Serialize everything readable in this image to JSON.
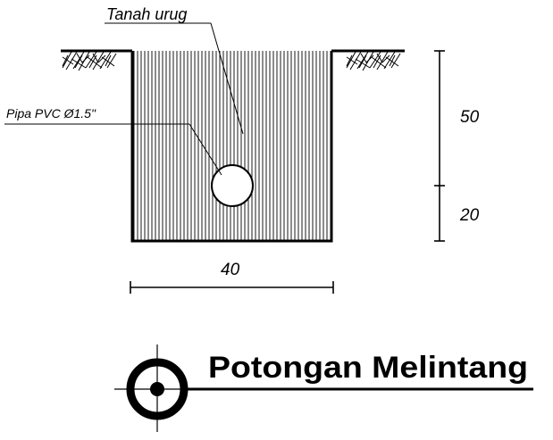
{
  "labels": {
    "backfill": "Tanah urug",
    "pipe": "Pipa PVC Ø1.5\""
  },
  "dimensions": {
    "upper_depth": "50",
    "lower_depth": "20",
    "width": "40"
  },
  "title": "Potongan Melintang",
  "colors": {
    "ink": "#000000",
    "paper": "#ffffff"
  },
  "icons": {
    "section_marker": "section-target-icon"
  }
}
